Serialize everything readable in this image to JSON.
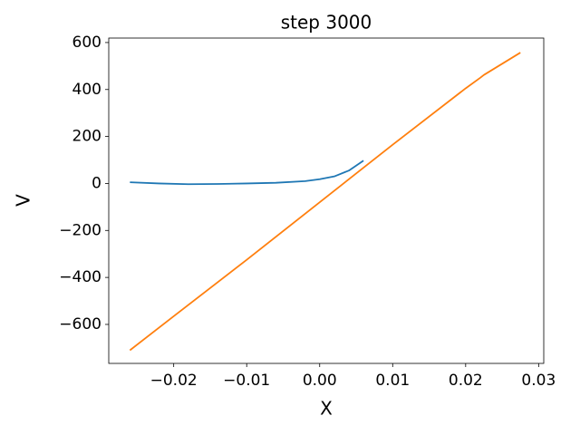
{
  "chart_data": {
    "type": "line",
    "title": "step 3000",
    "x_label": "X",
    "y_label": "V",
    "series": [
      {
        "name": "blue",
        "color": "#1f77b4",
        "x": [
          -0.026,
          -0.022,
          -0.018,
          -0.014,
          -0.01,
          -0.006,
          -0.002,
          0,
          0.002,
          0.004,
          0.006
        ],
        "values": [
          5,
          0,
          -3,
          -2,
          0,
          3,
          10,
          18,
          30,
          55,
          97
        ]
      },
      {
        "name": "orange",
        "color": "#ff7f0e",
        "x": [
          -0.026,
          -0.02,
          -0.01,
          0,
          0.01,
          0.02,
          0.022,
          0.0225,
          0.0275
        ],
        "values": [
          -710,
          -565,
          -325,
          -80,
          165,
          405,
          450,
          462,
          557
        ]
      }
    ],
    "xlim": [
      -0.0289,
      0.0307
    ],
    "ylim": [
      -766,
      619
    ],
    "xticks": [
      {
        "value": -0.02,
        "label": "−0.02"
      },
      {
        "value": -0.01,
        "label": "−0.01"
      },
      {
        "value": 0,
        "label": "0.00"
      },
      0.01,
      0.02,
      0.03
    ],
    "yticks": [
      {
        "value": -600,
        "label": "−600"
      },
      {
        "value": -400,
        "label": "−400"
      },
      {
        "value": -200,
        "label": "−200"
      },
      0,
      200,
      400,
      600
    ],
    "grid": false
  }
}
